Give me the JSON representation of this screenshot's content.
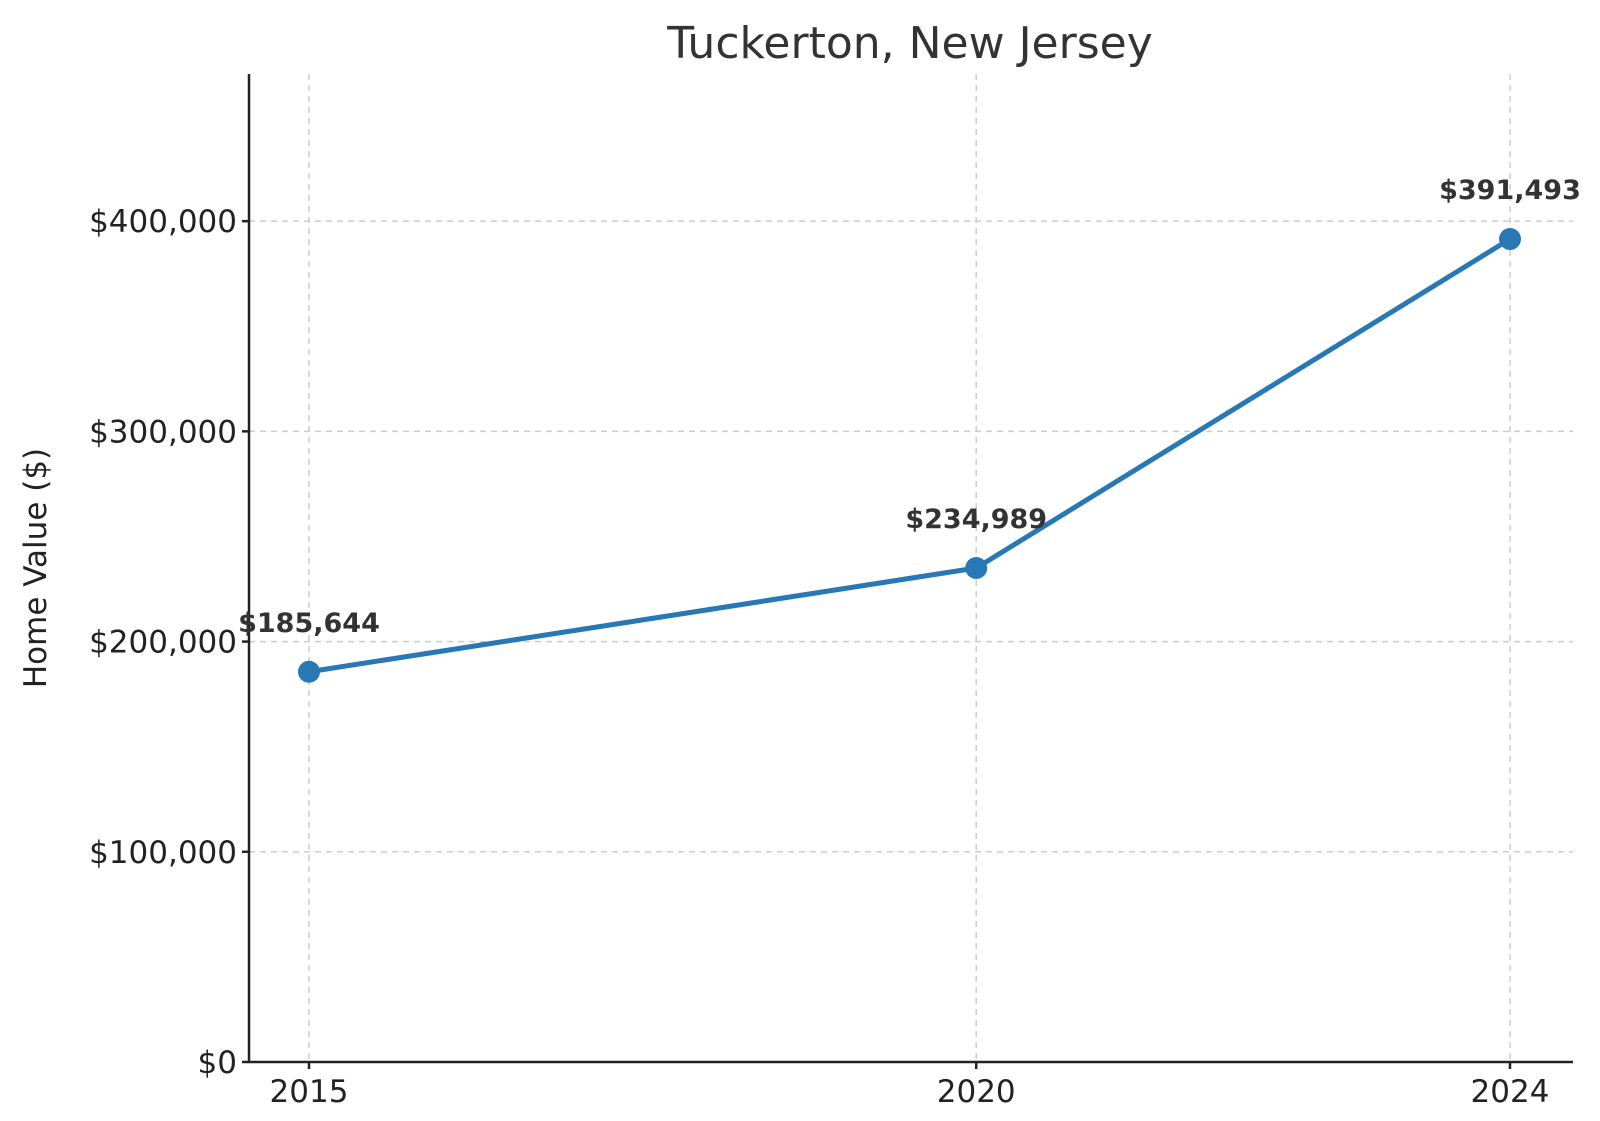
{
  "chart_data": {
    "type": "line",
    "title": "Tuckerton, New Jersey",
    "xlabel": "",
    "ylabel": "Home Value ($)",
    "categories": [
      "2015",
      "2020",
      "2024"
    ],
    "x": [
      2015,
      2020,
      2024
    ],
    "series": [
      {
        "values": [
          185644,
          234989,
          391493
        ],
        "labels": [
          "$185,644",
          "$234,989",
          "$391,493"
        ],
        "color": "#2878b5"
      }
    ],
    "yticks": [
      0,
      100000,
      200000,
      300000,
      400000
    ],
    "ytick_labels": [
      "$0",
      "$100,000",
      "$200,000",
      "$300,000",
      "$400,000"
    ],
    "ylim": [
      0,
      470000
    ],
    "grid": true,
    "legend": false
  }
}
